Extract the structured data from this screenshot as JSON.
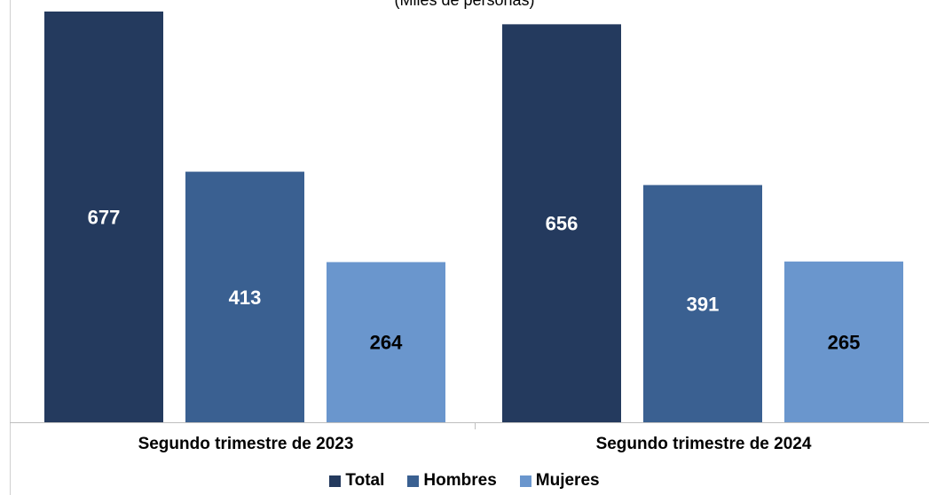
{
  "chart_data": {
    "type": "bar",
    "subtitle": "(Miles de personas)",
    "categories": [
      "Segundo trimestre de 2023",
      "Segundo trimestre de 2024"
    ],
    "series": [
      {
        "name": "Total",
        "values": [
          677,
          656
        ],
        "color": "#243a5e",
        "label_color": "#ffffff"
      },
      {
        "name": "Hombres",
        "values": [
          413,
          391
        ],
        "color": "#3a6091",
        "label_color": "#ffffff"
      },
      {
        "name": "Mujeres",
        "values": [
          264,
          265
        ],
        "color": "#6a96cd",
        "label_color": "#000000"
      }
    ],
    "ylim": [
      0,
      677
    ],
    "grid": false,
    "legend_position": "bottom",
    "data_labels": true
  }
}
